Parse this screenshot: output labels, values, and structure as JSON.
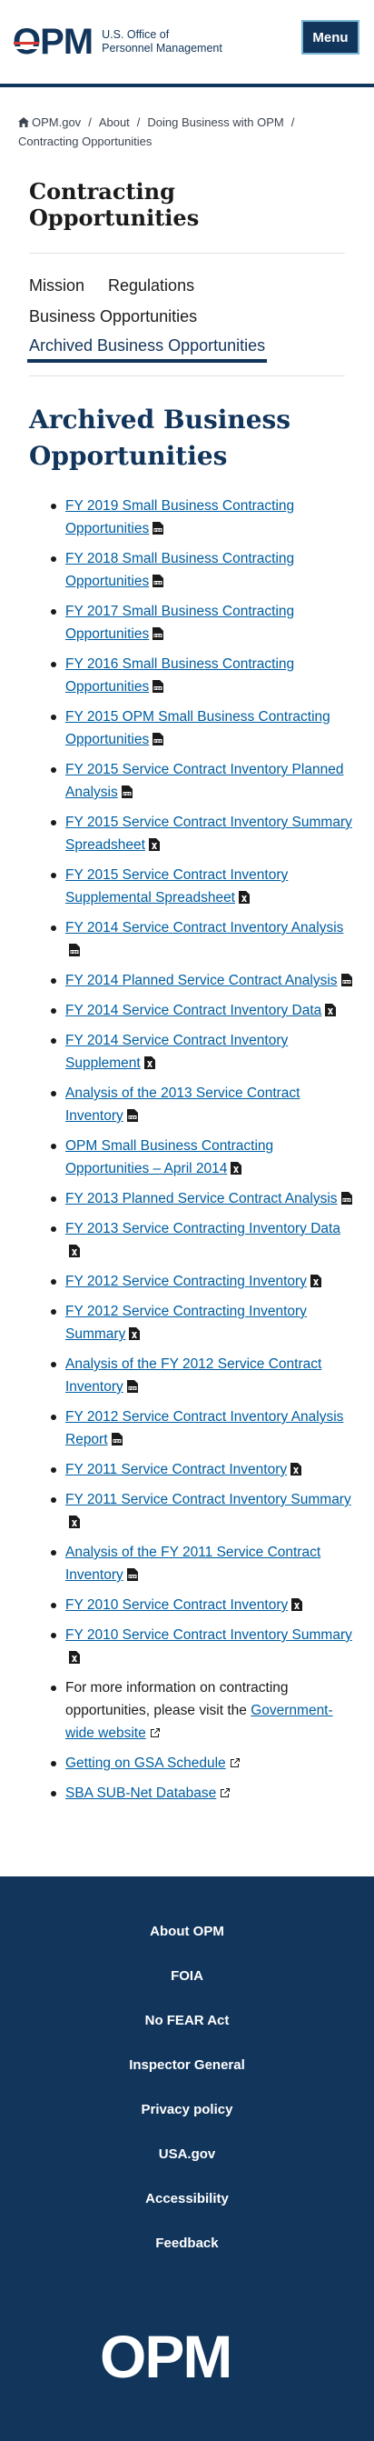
{
  "header": {
    "logo_mark": "OPM",
    "logo_line1": "U.S. Office of",
    "logo_line2": "Personnel Management",
    "menu_label": "Menu"
  },
  "breadcrumb": {
    "items": [
      "OPM.gov",
      "About",
      "Doing Business with OPM"
    ],
    "current": "Contracting Opportunities"
  },
  "section_title": "Contracting Opportunities",
  "subnav": {
    "mission": "Mission",
    "regulations": "Regulations",
    "business": "Business Opportunities",
    "archived": "Archived Business Opportunities"
  },
  "main": {
    "title": "Archived Business Opportunities",
    "items": [
      {
        "label": "FY 2019 Small Business Contracting Opportunities",
        "icon": "pdf"
      },
      {
        "label": "FY 2018 Small Business Contracting Opportunities",
        "icon": "pdf"
      },
      {
        "label": "FY 2017 Small Business Contracting Opportunities",
        "icon": "pdf"
      },
      {
        "label": "FY 2016 Small Business Contracting Opportunities",
        "icon": "pdf"
      },
      {
        "label": "FY 2015 OPM Small Business Contracting Opportunities",
        "icon": "pdf"
      },
      {
        "label": "FY 2015 Service Contract Inventory Planned Analysis",
        "icon": "pdf"
      },
      {
        "label": "FY 2015 Service Contract Inventory Summary Spreadsheet",
        "icon": "xls"
      },
      {
        "label": "FY 2015 Service Contract Inventory Supplemental Spreadsheet",
        "icon": "xls"
      },
      {
        "label": "FY 2014 Service Contract Inventory Analysis",
        "icon": "pdf"
      },
      {
        "label": "FY 2014 Planned Service Contract Analysis",
        "icon": "pdf"
      },
      {
        "label": "FY 2014 Service Contract Inventory Data",
        "icon": "xls"
      },
      {
        "label": "FY 2014 Service Contract Inventory Supplement",
        "icon": "xls"
      },
      {
        "label": "Analysis of the 2013 Service Contract Inventory",
        "icon": "pdf"
      },
      {
        "label": "OPM Small Business Contracting Opportunities – April 2014",
        "icon": "xls"
      },
      {
        "label": "FY 2013 Planned Service Contract Analysis",
        "icon": "pdf"
      },
      {
        "label": "FY 2013 Service Contracting Inventory Data",
        "icon": "xls"
      },
      {
        "label": "FY 2012 Service Contracting Inventory",
        "icon": "xls"
      },
      {
        "label": "FY 2012 Service Contracting Inventory Summary",
        "icon": "xls"
      },
      {
        "label": "Analysis of the FY 2012 Service Contract Inventory",
        "icon": "pdf"
      },
      {
        "label": "FY 2012 Service Contract Inventory Analysis Report",
        "icon": "pdf"
      },
      {
        "label": "FY 2011 Service Contract Inventory",
        "icon": "xls"
      },
      {
        "label": "FY 2011 Service Contract Inventory Summary",
        "icon": "xls"
      },
      {
        "label": "Analysis of the FY 2011 Service Contract Inventory",
        "icon": "pdf"
      },
      {
        "label": "FY 2010 Service Contract Inventory",
        "icon": "xls"
      },
      {
        "label": "FY 2010 Service Contract Inventory Summary",
        "icon": "xls"
      }
    ],
    "more_info_text": "For more information on contracting opportunities, please visit the ",
    "more_info_link": "Government-wide website",
    "gsa_link": "Getting on GSA Schedule",
    "sba_link": "SBA SUB-Net Database"
  },
  "footer": {
    "links": [
      "About OPM",
      "FOIA",
      "No FEAR Act",
      "Inspector General",
      "Privacy policy",
      "USA.gov",
      "Accessibility",
      "Feedback"
    ],
    "logo": "OPM"
  },
  "colors": {
    "navy": "#12355b",
    "link": "#005ea2"
  }
}
